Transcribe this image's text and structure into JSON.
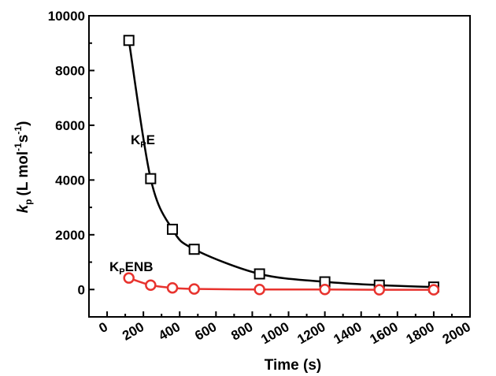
{
  "chart_data": {
    "type": "line",
    "title": "",
    "xlabel": "Time (s)",
    "ylabel": {
      "symbol": "k",
      "sub": "p",
      "pre": "(L mol",
      "sup1": "-1",
      "mid": "s",
      "sup2": "-1",
      "post": ")"
    },
    "xlim": [
      -100,
      2000
    ],
    "ylim": [
      -1000,
      10000
    ],
    "x_ticks": [
      "0",
      "200",
      "400",
      "600",
      "800",
      "1000",
      "1200",
      "1400",
      "1600",
      "1800",
      "2000"
    ],
    "y_ticks": [
      "0",
      "2000",
      "4000",
      "6000",
      "8000",
      "10000"
    ],
    "grid": false,
    "series": [
      {
        "name": "KPE",
        "label": {
          "main": "K",
          "sub": "P",
          "rest": "E"
        },
        "marker": "square",
        "color": "#000000",
        "x": [
          120,
          240,
          360,
          480,
          840,
          1200,
          1500,
          1800
        ],
        "y": [
          9100,
          4050,
          2200,
          1470,
          570,
          280,
          160,
          90
        ]
      },
      {
        "name": "KPENB",
        "label": {
          "main": "K",
          "sub": "P",
          "rest": "ENB"
        },
        "marker": "circle",
        "color": "#e8332e",
        "x": [
          120,
          240,
          360,
          480,
          840,
          1200,
          1500,
          1800
        ],
        "y": [
          420,
          160,
          60,
          20,
          0,
          0,
          -10,
          -10
        ]
      }
    ]
  }
}
